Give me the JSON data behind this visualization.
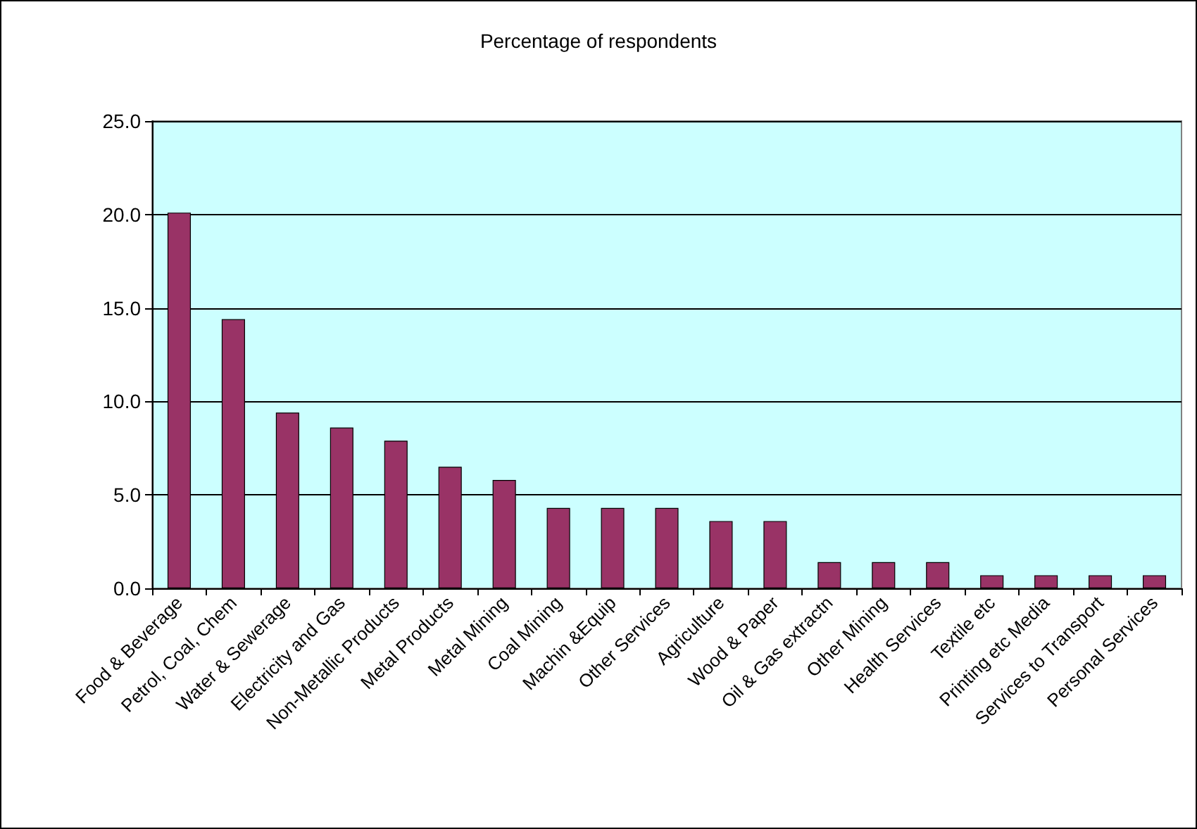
{
  "chart_data": {
    "type": "bar",
    "title": "Percentage of respondents",
    "categories": [
      "Food & Beverage",
      "Petrol, Coal, Chem",
      "Water & Sewerage",
      "Electricity and Gas",
      "Non-Metallic Products",
      "Metal Products",
      "Metal Mining",
      "Coal Mining",
      "Machin &Equip",
      "Other Services",
      "Agriculture",
      "Wood & Paper",
      "Oil & Gas extractn",
      "Other Mining",
      "Health Services",
      "Textile etc",
      "Printing etc Media",
      "Services to Transport",
      "Personal Services"
    ],
    "values": [
      20.1,
      14.4,
      9.4,
      8.6,
      7.9,
      6.5,
      5.8,
      4.3,
      4.3,
      4.3,
      3.6,
      3.6,
      1.4,
      1.4,
      1.4,
      0.7,
      0.7,
      0.7,
      0.7
    ],
    "color": "#993366",
    "ylim": [
      0,
      25
    ],
    "yticks": [
      {
        "value": 0,
        "label": "0.0"
      },
      {
        "value": 5,
        "label": "5.0"
      },
      {
        "value": 10,
        "label": "10.0"
      },
      {
        "value": 15,
        "label": "15.0"
      },
      {
        "value": 20,
        "label": "20.0"
      },
      {
        "value": 25,
        "label": "25.0"
      }
    ],
    "grid": "y"
  }
}
